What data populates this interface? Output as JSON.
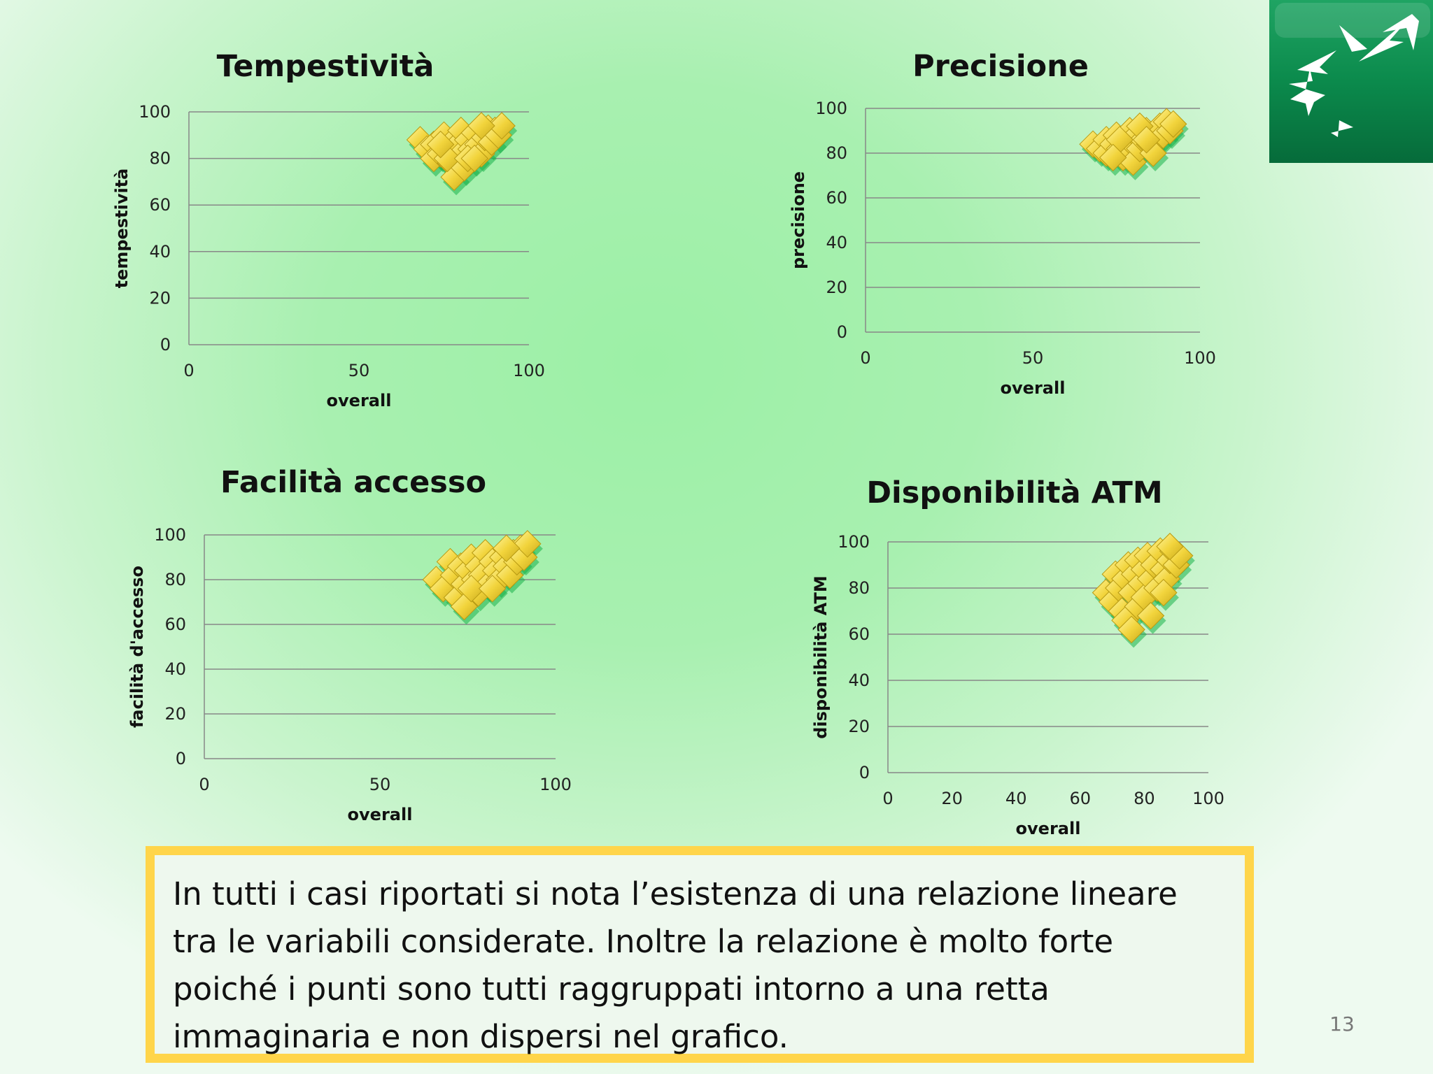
{
  "slide": {
    "page_number": "13",
    "note_lines": [
      "In tutti i casi riportati si nota l’esistenza  di una relazione lineare",
      "tra le variabili considerate. Inoltre la relazione è molto forte",
      "poiché i punti sono tutti raggruppati intorno a una retta",
      "immaginaria e non dispersi nel grafico."
    ]
  },
  "logo": {
    "icon": "bird-star-icon",
    "colors": [
      "#0e8c4e",
      "#ffffff"
    ]
  },
  "colors": {
    "marker": "#f2d43c",
    "marker_edge": "#b89a12",
    "shadow": "#19b34a",
    "grid": "#888888",
    "note_border": "#ffd54a"
  },
  "chart_data": [
    {
      "type": "scatter",
      "title": "Tempestività",
      "xlabel": "overall",
      "ylabel": "tempestività",
      "xlim": [
        0,
        100
      ],
      "ylim": [
        0,
        100
      ],
      "xticks": [
        "0",
        "50",
        "100"
      ],
      "yticks": [
        "0",
        "20",
        "40",
        "60",
        "80",
        "100"
      ],
      "grid": "horizontal",
      "marker": "diamond",
      "points": [
        [
          68,
          88
        ],
        [
          70,
          84
        ],
        [
          72,
          86
        ],
        [
          72,
          80
        ],
        [
          74,
          82
        ],
        [
          75,
          90
        ],
        [
          76,
          84
        ],
        [
          77,
          78
        ],
        [
          78,
          88
        ],
        [
          78,
          72
        ],
        [
          79,
          86
        ],
        [
          80,
          82
        ],
        [
          80,
          92
        ],
        [
          81,
          76
        ],
        [
          82,
          88
        ],
        [
          83,
          84
        ],
        [
          84,
          91
        ],
        [
          85,
          86
        ],
        [
          86,
          82
        ],
        [
          87,
          89
        ],
        [
          88,
          93
        ],
        [
          89,
          87
        ],
        [
          90,
          92
        ],
        [
          91,
          90
        ],
        [
          92,
          94
        ],
        [
          76,
          80
        ],
        [
          82,
          80
        ],
        [
          74,
          86
        ],
        [
          86,
          94
        ],
        [
          84,
          80
        ]
      ]
    },
    {
      "type": "scatter",
      "title": "Precisione",
      "xlabel": "overall",
      "ylabel": "precisione",
      "xlim": [
        0,
        100
      ],
      "ylim": [
        0,
        100
      ],
      "xticks": [
        "0",
        "50",
        "100"
      ],
      "yticks": [
        "0",
        "20",
        "40",
        "60",
        "80",
        "100"
      ],
      "grid": "horizontal",
      "marker": "diamond",
      "points": [
        [
          68,
          84
        ],
        [
          70,
          82
        ],
        [
          72,
          86
        ],
        [
          72,
          80
        ],
        [
          74,
          84
        ],
        [
          75,
          88
        ],
        [
          76,
          82
        ],
        [
          77,
          78
        ],
        [
          78,
          86
        ],
        [
          78,
          80
        ],
        [
          79,
          90
        ],
        [
          80,
          84
        ],
        [
          80,
          76
        ],
        [
          81,
          88
        ],
        [
          82,
          82
        ],
        [
          83,
          86
        ],
        [
          84,
          90
        ],
        [
          85,
          84
        ],
        [
          86,
          88
        ],
        [
          87,
          86
        ],
        [
          88,
          92
        ],
        [
          89,
          88
        ],
        [
          90,
          94
        ],
        [
          91,
          90
        ],
        [
          92,
          93
        ],
        [
          76,
          86
        ],
        [
          82,
          92
        ],
        [
          74,
          78
        ],
        [
          86,
          80
        ],
        [
          84,
          86
        ]
      ]
    },
    {
      "type": "scatter",
      "title": "Facilità accesso",
      "xlabel": "overall",
      "ylabel": "facilità d'accesso",
      "xlim": [
        0,
        100
      ],
      "ylim": [
        0,
        100
      ],
      "xticks": [
        "0",
        "50",
        "100"
      ],
      "yticks": [
        "0",
        "20",
        "40",
        "60",
        "80",
        "100"
      ],
      "grid": "horizontal",
      "marker": "diamond",
      "points": [
        [
          66,
          80
        ],
        [
          68,
          76
        ],
        [
          70,
          88
        ],
        [
          71,
          82
        ],
        [
          72,
          72
        ],
        [
          73,
          86
        ],
        [
          74,
          78
        ],
        [
          74,
          68
        ],
        [
          75,
          84
        ],
        [
          76,
          90
        ],
        [
          77,
          80
        ],
        [
          78,
          86
        ],
        [
          78,
          74
        ],
        [
          79,
          82
        ],
        [
          80,
          92
        ],
        [
          81,
          78
        ],
        [
          82,
          88
        ],
        [
          83,
          84
        ],
        [
          84,
          80
        ],
        [
          85,
          90
        ],
        [
          86,
          86
        ],
        [
          87,
          82
        ],
        [
          88,
          92
        ],
        [
          89,
          88
        ],
        [
          90,
          94
        ],
        [
          91,
          90
        ],
        [
          92,
          96
        ],
        [
          76,
          76
        ],
        [
          82,
          76
        ],
        [
          86,
          94
        ]
      ]
    },
    {
      "type": "scatter",
      "title": "Disponibilità ATM",
      "xlabel": "overall",
      "ylabel": "disponibilità ATM",
      "xlim": [
        0,
        100
      ],
      "ylim": [
        0,
        100
      ],
      "xticks": [
        "0",
        "20",
        "40",
        "60",
        "80",
        "100"
      ],
      "yticks": [
        "0",
        "20",
        "40",
        "60",
        "80",
        "100"
      ],
      "grid": "horizontal",
      "marker": "diamond",
      "points": [
        [
          68,
          78
        ],
        [
          70,
          74
        ],
        [
          71,
          86
        ],
        [
          72,
          80
        ],
        [
          73,
          70
        ],
        [
          74,
          84
        ],
        [
          74,
          66
        ],
        [
          75,
          90
        ],
        [
          76,
          78
        ],
        [
          77,
          86
        ],
        [
          78,
          72
        ],
        [
          78,
          92
        ],
        [
          79,
          82
        ],
        [
          80,
          88
        ],
        [
          80,
          76
        ],
        [
          81,
          94
        ],
        [
          82,
          84
        ],
        [
          83,
          90
        ],
        [
          84,
          80
        ],
        [
          85,
          96
        ],
        [
          86,
          88
        ],
        [
          87,
          84
        ],
        [
          88,
          92
        ],
        [
          89,
          96
        ],
        [
          90,
          90
        ],
        [
          91,
          94
        ],
        [
          76,
          62
        ],
        [
          82,
          68
        ],
        [
          86,
          78
        ],
        [
          88,
          98
        ]
      ]
    }
  ]
}
